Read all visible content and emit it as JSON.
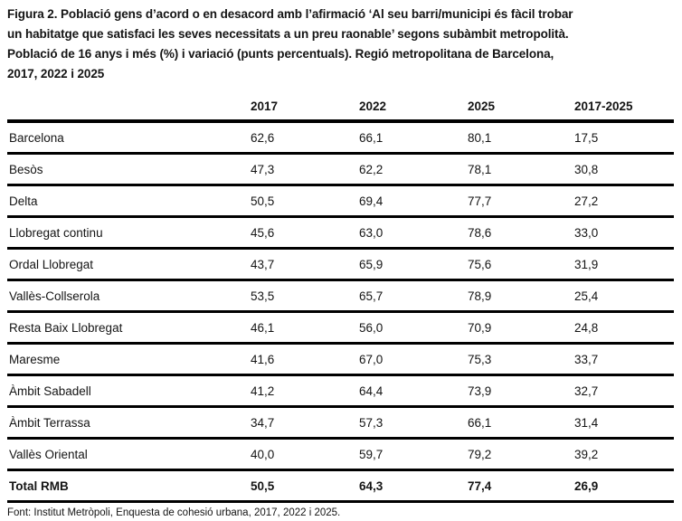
{
  "figure": {
    "title_lines": [
      "Figura 2. Població gens d’acord o en desacord amb l’afirmació ‘Al seu barri/municipi és fàcil trobar",
      "un habitatge que satisfaci les seves necessitats a un preu raonable’ segons subàmbit metropolità.",
      "Població de 16 anys i més (%) i variació (punts percentuals). Regió metropolitana de Barcelona,",
      "2017, 2022 i 2025"
    ],
    "source": "Font: Institut Metròpoli, Enquesta de cohesió urbana, 2017, 2022 i 2025."
  },
  "table": {
    "columns": [
      "2017",
      "2022",
      "2025",
      "2017-2025"
    ],
    "rows": [
      {
        "label": "Barcelona",
        "values": [
          "62,6",
          "66,1",
          "80,1",
          "17,5"
        ],
        "bold": false
      },
      {
        "label": "Besòs",
        "values": [
          "47,3",
          "62,2",
          "78,1",
          "30,8"
        ],
        "bold": false
      },
      {
        "label": "Delta",
        "values": [
          "50,5",
          "69,4",
          "77,7",
          "27,2"
        ],
        "bold": false
      },
      {
        "label": "Llobregat continu",
        "values": [
          "45,6",
          "63,0",
          "78,6",
          "33,0"
        ],
        "bold": false
      },
      {
        "label": "Ordal Llobregat",
        "values": [
          "43,7",
          "65,9",
          "75,6",
          "31,9"
        ],
        "bold": false
      },
      {
        "label": "Vallès-Collserola",
        "values": [
          "53,5",
          "65,7",
          "78,9",
          "25,4"
        ],
        "bold": false
      },
      {
        "label": "Resta Baix Llobregat",
        "values": [
          "46,1",
          "56,0",
          "70,9",
          "24,8"
        ],
        "bold": false
      },
      {
        "label": "Maresme",
        "values": [
          "41,6",
          "67,0",
          "75,3",
          "33,7"
        ],
        "bold": false
      },
      {
        "label": "Àmbit Sabadell",
        "values": [
          "41,2",
          "64,4",
          "73,9",
          "32,7"
        ],
        "bold": false
      },
      {
        "label": "Àmbit Terrassa",
        "values": [
          "34,7",
          "57,3",
          "66,1",
          "31,4"
        ],
        "bold": false
      },
      {
        "label": "Vallès Oriental",
        "values": [
          "40,0",
          "59,7",
          "79,2",
          "39,2"
        ],
        "bold": false
      },
      {
        "label": "Total RMB",
        "values": [
          "50,5",
          "64,3",
          "77,4",
          "26,9"
        ],
        "bold": true
      }
    ]
  },
  "colors": {
    "background": "#ffffff",
    "text": "#141414",
    "rule": "#000000"
  }
}
